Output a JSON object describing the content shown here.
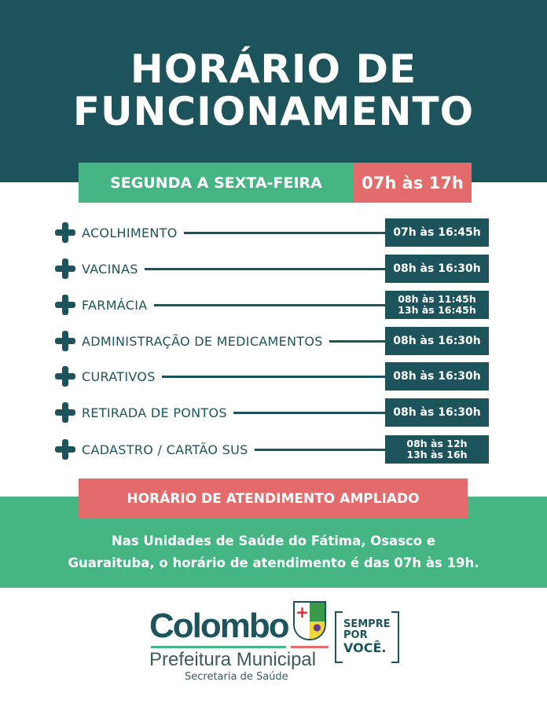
{
  "title": {
    "line1": "HORÁRIO DE",
    "line2": "FUNCIONAMENTO"
  },
  "schedule": {
    "days": "SEGUNDA A SEXTA-FEIRA",
    "hours": "07h às 17h"
  },
  "services": [
    {
      "name": "ACOLHIMENTO",
      "times": [
        "07h às 16:45h"
      ]
    },
    {
      "name": "VACINAS",
      "times": [
        "08h às 16:30h"
      ]
    },
    {
      "name": "FARMÁCIA",
      "times": [
        "08h às 11:45h",
        "13h às 16:45h"
      ]
    },
    {
      "name": "ADMINISTRAÇÃO DE MEDICAMENTOS",
      "times": [
        "08h às 16:30h"
      ]
    },
    {
      "name": "CURATIVOS",
      "times": [
        "08h às 16:30h"
      ]
    },
    {
      "name": "RETIRADA DE PONTOS",
      "times": [
        "08h às 16:30h"
      ]
    },
    {
      "name": "CADASTRO / CARTÃO SUS",
      "times": [
        "08h às 12h",
        "13h às 16h"
      ]
    }
  ],
  "extended": {
    "heading": "HORÁRIO DE ATENDIMENTO AMPLIADO",
    "line1": "Nas Unidades de Saúde do Fátima, Osasco e",
    "line2": "Guaraituba, o horário de atendimento é das 07h às 19h."
  },
  "logo": {
    "name": "Colombo",
    "subtitle": "Prefeitura Municipal",
    "department": "Secretaria de Saúde",
    "slogan": [
      "SEMPRE",
      "POR",
      "VOCÊ."
    ]
  },
  "colors": {
    "dark": "#1d545c",
    "green": "#45b584",
    "red": "#e36b6b"
  }
}
